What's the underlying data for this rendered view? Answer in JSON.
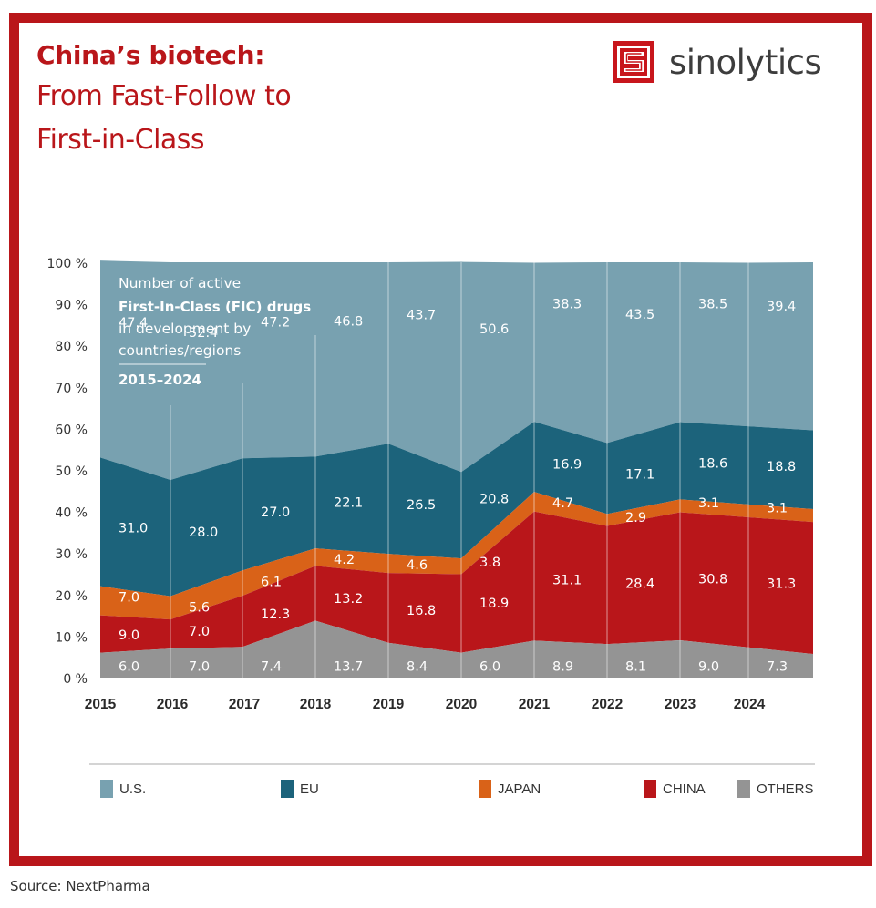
{
  "header": {
    "title_bold": "China’s biotech:",
    "title_line2": "From Fast-Follow to",
    "title_line3": "First-in-Class",
    "logo_text": "sinolytics",
    "logo_icon": "sinolytics-s-maze-icon"
  },
  "colors": {
    "frame": "#b9161a",
    "us": "#78a1b0",
    "eu": "#1c637b",
    "japan": "#d96218",
    "china": "#b9161a",
    "others": "#949494"
  },
  "annotation": {
    "line1": "Number of active",
    "line2": "First-In-Class (FIC) drugs",
    "line3": "in development by",
    "line4": "countries/regions",
    "years": "2015–2024"
  },
  "chart_data": {
    "type": "area",
    "stacked": true,
    "normalized": true,
    "title": "Number of active First-In-Class (FIC) drugs in development by countries/regions 2015–2024",
    "xlabel": "",
    "ylabel": "",
    "ylim": [
      0,
      100
    ],
    "yticks": [
      "0 %",
      "10 %",
      "20 %",
      "30 %",
      "40 %",
      "50 %",
      "60 %",
      "70 %",
      "80 %",
      "90 %",
      "100 %"
    ],
    "categories": [
      "2015",
      "2016",
      "2017",
      "2018",
      "2019",
      "2020",
      "2021",
      "2022",
      "2023",
      "2024"
    ],
    "series": [
      {
        "name": "OTHERS",
        "key": "others",
        "values": [
          6.0,
          7.0,
          7.4,
          13.7,
          8.4,
          6.0,
          8.9,
          8.1,
          9.0,
          7.3
        ]
      },
      {
        "name": "CHINA",
        "key": "china",
        "values": [
          9.0,
          7.0,
          12.3,
          13.2,
          16.8,
          18.9,
          31.1,
          28.4,
          30.8,
          31.3
        ]
      },
      {
        "name": "JAPAN",
        "key": "japan",
        "values": [
          7.0,
          5.6,
          6.1,
          4.2,
          4.6,
          3.8,
          4.7,
          2.9,
          3.1,
          3.1
        ]
      },
      {
        "name": "EU",
        "key": "eu",
        "values": [
          31.0,
          28.0,
          27.0,
          22.1,
          26.5,
          20.8,
          16.9,
          17.1,
          18.6,
          18.8
        ]
      },
      {
        "name": "U.S.",
        "key": "us",
        "values": [
          47.4,
          52.4,
          47.2,
          46.8,
          43.7,
          50.6,
          38.3,
          43.5,
          38.5,
          39.4
        ]
      }
    ],
    "legend": [
      "U.S.",
      "EU",
      "JAPAN",
      "CHINA",
      "OTHERS"
    ],
    "legend_position": "bottom",
    "grid": "vertical"
  },
  "footer": {
    "source": "Source: NextPharma"
  }
}
